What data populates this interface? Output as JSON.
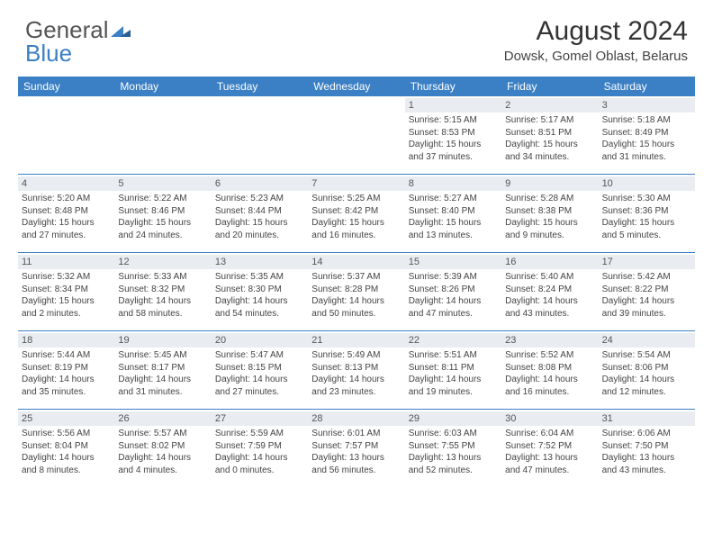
{
  "logo": {
    "text1": "General",
    "text2": "Blue"
  },
  "title": "August 2024",
  "location": "Dowsk, Gomel Oblast, Belarus",
  "colors": {
    "header_bg": "#3b7fc4",
    "daynum_bg": "#e9edf1",
    "border": "#3b7fc4",
    "text": "#333333",
    "subtext": "#555555"
  },
  "day_names": [
    "Sunday",
    "Monday",
    "Tuesday",
    "Wednesday",
    "Thursday",
    "Friday",
    "Saturday"
  ],
  "weeks": [
    [
      {
        "empty": true
      },
      {
        "empty": true
      },
      {
        "empty": true
      },
      {
        "empty": true
      },
      {
        "day": "1",
        "sunrise": "Sunrise: 5:15 AM",
        "sunset": "Sunset: 8:53 PM",
        "daylight": "Daylight: 15 hours and 37 minutes."
      },
      {
        "day": "2",
        "sunrise": "Sunrise: 5:17 AM",
        "sunset": "Sunset: 8:51 PM",
        "daylight": "Daylight: 15 hours and 34 minutes."
      },
      {
        "day": "3",
        "sunrise": "Sunrise: 5:18 AM",
        "sunset": "Sunset: 8:49 PM",
        "daylight": "Daylight: 15 hours and 31 minutes."
      }
    ],
    [
      {
        "day": "4",
        "sunrise": "Sunrise: 5:20 AM",
        "sunset": "Sunset: 8:48 PM",
        "daylight": "Daylight: 15 hours and 27 minutes."
      },
      {
        "day": "5",
        "sunrise": "Sunrise: 5:22 AM",
        "sunset": "Sunset: 8:46 PM",
        "daylight": "Daylight: 15 hours and 24 minutes."
      },
      {
        "day": "6",
        "sunrise": "Sunrise: 5:23 AM",
        "sunset": "Sunset: 8:44 PM",
        "daylight": "Daylight: 15 hours and 20 minutes."
      },
      {
        "day": "7",
        "sunrise": "Sunrise: 5:25 AM",
        "sunset": "Sunset: 8:42 PM",
        "daylight": "Daylight: 15 hours and 16 minutes."
      },
      {
        "day": "8",
        "sunrise": "Sunrise: 5:27 AM",
        "sunset": "Sunset: 8:40 PM",
        "daylight": "Daylight: 15 hours and 13 minutes."
      },
      {
        "day": "9",
        "sunrise": "Sunrise: 5:28 AM",
        "sunset": "Sunset: 8:38 PM",
        "daylight": "Daylight: 15 hours and 9 minutes."
      },
      {
        "day": "10",
        "sunrise": "Sunrise: 5:30 AM",
        "sunset": "Sunset: 8:36 PM",
        "daylight": "Daylight: 15 hours and 5 minutes."
      }
    ],
    [
      {
        "day": "11",
        "sunrise": "Sunrise: 5:32 AM",
        "sunset": "Sunset: 8:34 PM",
        "daylight": "Daylight: 15 hours and 2 minutes."
      },
      {
        "day": "12",
        "sunrise": "Sunrise: 5:33 AM",
        "sunset": "Sunset: 8:32 PM",
        "daylight": "Daylight: 14 hours and 58 minutes."
      },
      {
        "day": "13",
        "sunrise": "Sunrise: 5:35 AM",
        "sunset": "Sunset: 8:30 PM",
        "daylight": "Daylight: 14 hours and 54 minutes."
      },
      {
        "day": "14",
        "sunrise": "Sunrise: 5:37 AM",
        "sunset": "Sunset: 8:28 PM",
        "daylight": "Daylight: 14 hours and 50 minutes."
      },
      {
        "day": "15",
        "sunrise": "Sunrise: 5:39 AM",
        "sunset": "Sunset: 8:26 PM",
        "daylight": "Daylight: 14 hours and 47 minutes."
      },
      {
        "day": "16",
        "sunrise": "Sunrise: 5:40 AM",
        "sunset": "Sunset: 8:24 PM",
        "daylight": "Daylight: 14 hours and 43 minutes."
      },
      {
        "day": "17",
        "sunrise": "Sunrise: 5:42 AM",
        "sunset": "Sunset: 8:22 PM",
        "daylight": "Daylight: 14 hours and 39 minutes."
      }
    ],
    [
      {
        "day": "18",
        "sunrise": "Sunrise: 5:44 AM",
        "sunset": "Sunset: 8:19 PM",
        "daylight": "Daylight: 14 hours and 35 minutes."
      },
      {
        "day": "19",
        "sunrise": "Sunrise: 5:45 AM",
        "sunset": "Sunset: 8:17 PM",
        "daylight": "Daylight: 14 hours and 31 minutes."
      },
      {
        "day": "20",
        "sunrise": "Sunrise: 5:47 AM",
        "sunset": "Sunset: 8:15 PM",
        "daylight": "Daylight: 14 hours and 27 minutes."
      },
      {
        "day": "21",
        "sunrise": "Sunrise: 5:49 AM",
        "sunset": "Sunset: 8:13 PM",
        "daylight": "Daylight: 14 hours and 23 minutes."
      },
      {
        "day": "22",
        "sunrise": "Sunrise: 5:51 AM",
        "sunset": "Sunset: 8:11 PM",
        "daylight": "Daylight: 14 hours and 19 minutes."
      },
      {
        "day": "23",
        "sunrise": "Sunrise: 5:52 AM",
        "sunset": "Sunset: 8:08 PM",
        "daylight": "Daylight: 14 hours and 16 minutes."
      },
      {
        "day": "24",
        "sunrise": "Sunrise: 5:54 AM",
        "sunset": "Sunset: 8:06 PM",
        "daylight": "Daylight: 14 hours and 12 minutes."
      }
    ],
    [
      {
        "day": "25",
        "sunrise": "Sunrise: 5:56 AM",
        "sunset": "Sunset: 8:04 PM",
        "daylight": "Daylight: 14 hours and 8 minutes."
      },
      {
        "day": "26",
        "sunrise": "Sunrise: 5:57 AM",
        "sunset": "Sunset: 8:02 PM",
        "daylight": "Daylight: 14 hours and 4 minutes."
      },
      {
        "day": "27",
        "sunrise": "Sunrise: 5:59 AM",
        "sunset": "Sunset: 7:59 PM",
        "daylight": "Daylight: 14 hours and 0 minutes."
      },
      {
        "day": "28",
        "sunrise": "Sunrise: 6:01 AM",
        "sunset": "Sunset: 7:57 PM",
        "daylight": "Daylight: 13 hours and 56 minutes."
      },
      {
        "day": "29",
        "sunrise": "Sunrise: 6:03 AM",
        "sunset": "Sunset: 7:55 PM",
        "daylight": "Daylight: 13 hours and 52 minutes."
      },
      {
        "day": "30",
        "sunrise": "Sunrise: 6:04 AM",
        "sunset": "Sunset: 7:52 PM",
        "daylight": "Daylight: 13 hours and 47 minutes."
      },
      {
        "day": "31",
        "sunrise": "Sunrise: 6:06 AM",
        "sunset": "Sunset: 7:50 PM",
        "daylight": "Daylight: 13 hours and 43 minutes."
      }
    ]
  ]
}
